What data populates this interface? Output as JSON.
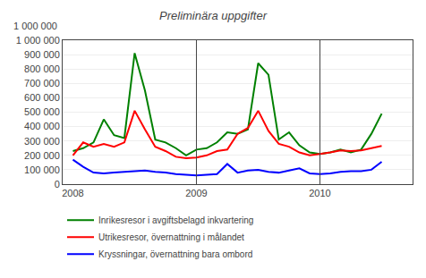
{
  "chart_data": {
    "type": "line",
    "title": "Preliminära uppgifter",
    "x": [
      2008,
      2008.0833333333333,
      2008.1666666666667,
      2008.25,
      2008.3333333333333,
      2008.4166666666667,
      2008.5,
      2008.5833333333333,
      2008.6666666666667,
      2008.75,
      2008.8333333333333,
      2008.9166666666667,
      2009,
      2009.0833333333333,
      2009.1666666666667,
      2009.25,
      2009.3333333333333,
      2009.4166666666667,
      2009.5,
      2009.5833333333333,
      2009.6666666666667,
      2009.75,
      2009.8333333333333,
      2009.9166666666667,
      2010,
      2010.0833333333333,
      2010.1666666666667,
      2010.25,
      2010.3333333333333,
      2010.4166666666667,
      2010.5
    ],
    "series": [
      {
        "name": "Inrikesresor i avgiftsbelagd inkvartering",
        "color": "#008000",
        "values": [
          230000,
          250000,
          290000,
          450000,
          340000,
          320000,
          910000,
          650000,
          310000,
          290000,
          250000,
          200000,
          240000,
          250000,
          290000,
          360000,
          350000,
          380000,
          840000,
          760000,
          310000,
          360000,
          270000,
          220000,
          210000,
          220000,
          240000,
          220000,
          240000,
          350000,
          490000
        ]
      },
      {
        "name": "Utrikesresor, övernattning i målandet",
        "color": "#FF0000",
        "values": [
          200000,
          290000,
          260000,
          280000,
          260000,
          290000,
          510000,
          380000,
          260000,
          230000,
          190000,
          180000,
          185000,
          200000,
          230000,
          240000,
          350000,
          390000,
          510000,
          370000,
          280000,
          260000,
          220000,
          200000,
          210000,
          220000,
          235000,
          230000,
          235000,
          250000,
          265000
        ]
      },
      {
        "name": "Kryssningar, övernattning bara ombord",
        "color": "#0000FF",
        "values": [
          170000,
          120000,
          80000,
          75000,
          80000,
          85000,
          90000,
          95000,
          85000,
          80000,
          70000,
          65000,
          60000,
          65000,
          70000,
          140000,
          80000,
          95000,
          100000,
          85000,
          80000,
          95000,
          110000,
          75000,
          70000,
          75000,
          85000,
          90000,
          90000,
          100000,
          155000
        ]
      }
    ],
    "xlim": [
      2007.917,
      2010.75
    ],
    "xticks": [
      2008,
      2009,
      2010
    ],
    "ylim": [
      0,
      1000000
    ],
    "yticks": [
      0,
      {
        "value": 100000,
        "label": "100 000"
      },
      {
        "value": 200000,
        "label": "200 000"
      },
      {
        "value": 300000,
        "label": "300 000"
      },
      {
        "value": 400000,
        "label": "400 000"
      },
      {
        "value": 500000,
        "label": "500 000"
      },
      {
        "value": 600000,
        "label": "600 000"
      },
      {
        "value": 700000,
        "label": "700 000"
      },
      {
        "value": 800000,
        "label": "800 000"
      },
      {
        "value": 900000,
        "label": "900 000"
      },
      {
        "value": 1000000,
        "label": "1 000 000"
      }
    ],
    "vlines": [
      2009,
      2010
    ],
    "annotations": [
      {
        "text": "1 000 000"
      }
    ],
    "grid": true,
    "legend": "bottom"
  }
}
